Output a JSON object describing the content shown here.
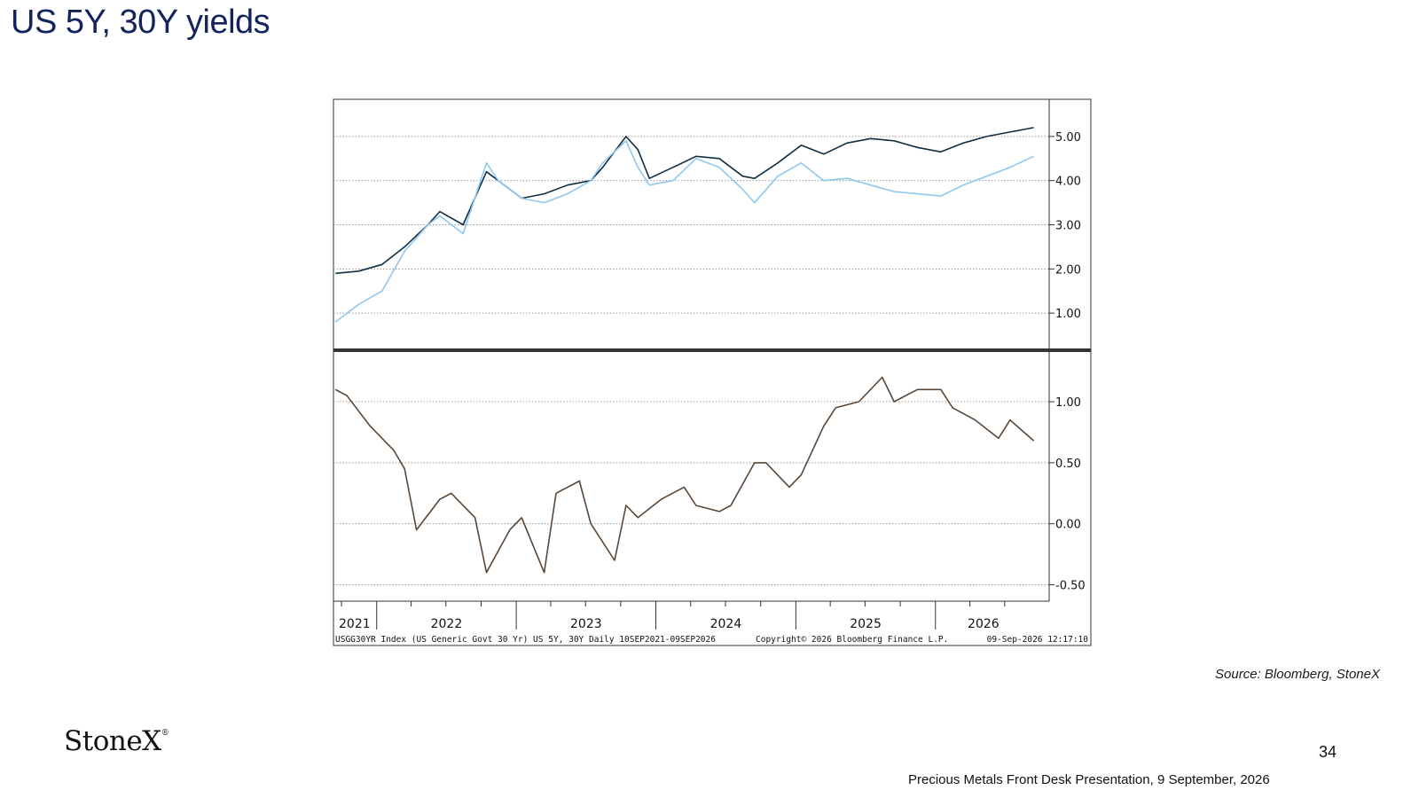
{
  "slide": {
    "title": "US 5Y, 30Y yields",
    "source": "Source: Bloomberg, StoneX",
    "page_number": "34",
    "footer": "Precious Metals Front Desk Presentation, 9 September, 2026",
    "logo": "StoneX",
    "logo_mark": "®"
  },
  "chart_footer": {
    "left": "USGG30YR Index (US Generic Govt 30 Yr) US 5Y, 30Y Daily 10SEP2021-09SEP2026",
    "center": "Copyright© 2026 Bloomberg Finance L.P.",
    "right": "09-Sep-2026 12:17:10"
  },
  "colors": {
    "us30y": "#0e2f44",
    "us5y": "#8ec8f0",
    "spread": "#5a4636",
    "grid": "#999999",
    "divider": "#333333"
  },
  "chart_data": [
    {
      "type": "line",
      "title": "",
      "x_ticks": [
        "2021",
        "2022",
        "2023",
        "2024",
        "2025",
        "2026"
      ],
      "y_ticks": [
        "1.00",
        "2.00",
        "3.00",
        "4.00",
        "5.00"
      ],
      "ylim": [
        0.2,
        5.8
      ],
      "grid": true,
      "series": [
        {
          "key": "us30y",
          "x": [
            "2021-09",
            "2021-11",
            "2022-01",
            "2022-03",
            "2022-05",
            "2022-06",
            "2022-08",
            "2022-10",
            "2022-11",
            "2023-01",
            "2023-03",
            "2023-05",
            "2023-07",
            "2023-08",
            "2023-10",
            "2023-11",
            "2023-12",
            "2024-02",
            "2024-04",
            "2024-06",
            "2024-08",
            "2024-09",
            "2024-11",
            "2025-01",
            "2025-03",
            "2025-05",
            "2025-07",
            "2025-09",
            "2025-11",
            "2026-01",
            "2026-03",
            "2026-05",
            "2026-07",
            "2026-09"
          ],
          "values": [
            1.9,
            1.95,
            2.1,
            2.5,
            3.0,
            3.3,
            3.0,
            4.2,
            4.0,
            3.6,
            3.7,
            3.9,
            4.0,
            4.3,
            5.0,
            4.7,
            4.05,
            4.3,
            4.55,
            4.5,
            4.1,
            4.05,
            4.4,
            4.8,
            4.6,
            4.85,
            4.95,
            4.9,
            4.75,
            4.65,
            4.85,
            5.0,
            5.1,
            5.2
          ]
        },
        {
          "key": "us5y",
          "x": [
            "2021-09",
            "2021-11",
            "2022-01",
            "2022-03",
            "2022-05",
            "2022-06",
            "2022-08",
            "2022-10",
            "2022-11",
            "2023-01",
            "2023-03",
            "2023-05",
            "2023-07",
            "2023-08",
            "2023-10",
            "2023-11",
            "2023-12",
            "2024-02",
            "2024-04",
            "2024-06",
            "2024-08",
            "2024-09",
            "2024-11",
            "2025-01",
            "2025-03",
            "2025-05",
            "2025-07",
            "2025-09",
            "2025-11",
            "2026-01",
            "2026-03",
            "2026-05",
            "2026-07",
            "2026-09"
          ],
          "values": [
            0.8,
            1.2,
            1.5,
            2.4,
            3.0,
            3.2,
            2.8,
            4.4,
            4.0,
            3.6,
            3.5,
            3.7,
            4.0,
            4.4,
            4.9,
            4.3,
            3.9,
            4.0,
            4.5,
            4.3,
            3.8,
            3.5,
            4.1,
            4.4,
            4.0,
            4.05,
            3.9,
            3.75,
            3.7,
            3.65,
            3.9,
            4.1,
            4.3,
            4.55
          ]
        }
      ]
    },
    {
      "type": "line",
      "title": "",
      "x_ticks": [
        "2021",
        "2022",
        "2023",
        "2024",
        "2025",
        "2026"
      ],
      "y_ticks": [
        "-0.50",
        "0.00",
        "0.50",
        "1.00"
      ],
      "ylim": [
        -0.62,
        1.4
      ],
      "grid": true,
      "series": [
        {
          "key": "spread",
          "x": [
            "2021-09",
            "2021-10",
            "2021-12",
            "2022-02",
            "2022-03",
            "2022-04",
            "2022-06",
            "2022-07",
            "2022-09",
            "2022-10",
            "2022-12",
            "2023-01",
            "2023-03",
            "2023-04",
            "2023-06",
            "2023-07",
            "2023-09",
            "2023-10",
            "2023-11",
            "2024-01",
            "2024-03",
            "2024-04",
            "2024-06",
            "2024-07",
            "2024-09",
            "2024-10",
            "2024-12",
            "2025-01",
            "2025-03",
            "2025-04",
            "2025-06",
            "2025-08",
            "2025-09",
            "2025-11",
            "2026-01",
            "2026-02",
            "2026-04",
            "2026-06",
            "2026-07",
            "2026-09"
          ],
          "values": [
            1.1,
            1.05,
            0.8,
            0.6,
            0.45,
            -0.05,
            0.2,
            0.25,
            0.05,
            -0.4,
            -0.05,
            0.05,
            -0.4,
            0.25,
            0.35,
            0.0,
            -0.3,
            0.15,
            0.05,
            0.2,
            0.3,
            0.15,
            0.1,
            0.15,
            0.5,
            0.5,
            0.3,
            0.4,
            0.8,
            0.95,
            1.0,
            1.2,
            1.0,
            1.1,
            1.1,
            0.95,
            0.85,
            0.7,
            0.85,
            0.68
          ]
        }
      ]
    }
  ]
}
